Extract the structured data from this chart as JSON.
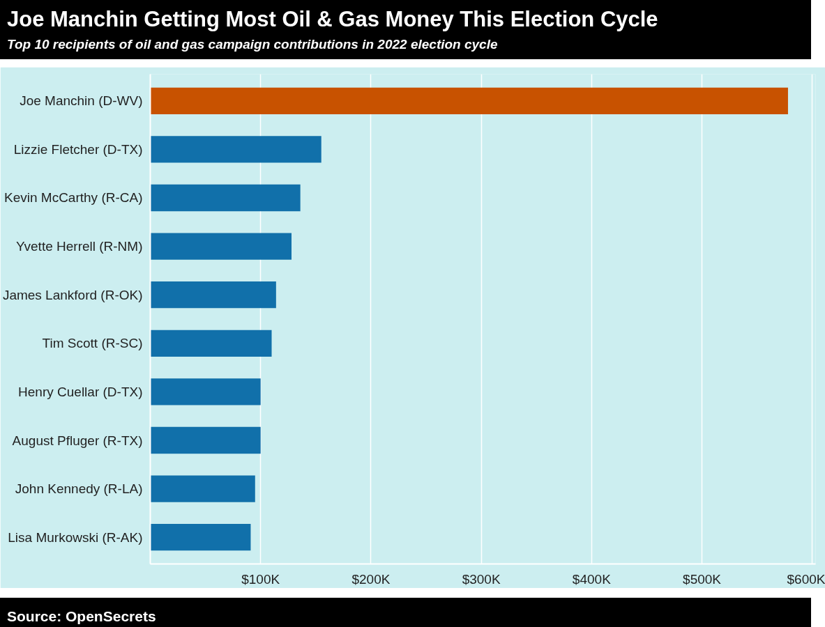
{
  "chart_data": {
    "type": "bar",
    "orientation": "horizontal",
    "title": "Joe Manchin Getting Most Oil & Gas Money This Election Cycle",
    "subtitle": "Top 10 recipients of oil and gas campaign contributions in 2022 election cycle",
    "categories": [
      "Joe Manchin (D-WV)",
      "Lizzie Fletcher (D-TX)",
      "Kevin McCarthy (R-CA)",
      "Yvette Herrell (R-NM)",
      "James Lankford (R-OK)",
      "Tim Scott (R-SC)",
      "Henry Cuellar (D-TX)",
      "August Pfluger (R-TX)",
      "John Kennedy (R-LA)",
      "Lisa Murkowski (R-AK)"
    ],
    "values": [
      578000,
      155000,
      136000,
      128000,
      114000,
      110000,
      100000,
      100000,
      95000,
      91000
    ],
    "colors": [
      "#c85200",
      "#1170aa",
      "#1170aa",
      "#1170aa",
      "#1170aa",
      "#1170aa",
      "#1170aa",
      "#1170aa",
      "#1170aa",
      "#1170aa"
    ],
    "xlim": [
      0,
      603000
    ],
    "xticks": [
      {
        "value": 100000,
        "label": "$100K"
      },
      {
        "value": 200000,
        "label": "$200K"
      },
      {
        "value": 300000,
        "label": "$300K"
      },
      {
        "value": 400000,
        "label": "$400K"
      },
      {
        "value": 500000,
        "label": "$500K"
      },
      {
        "value": 600000,
        "label": "$600K"
      }
    ],
    "grid": "x",
    "annotations": [
      "Source: OpenSecrets"
    ]
  }
}
